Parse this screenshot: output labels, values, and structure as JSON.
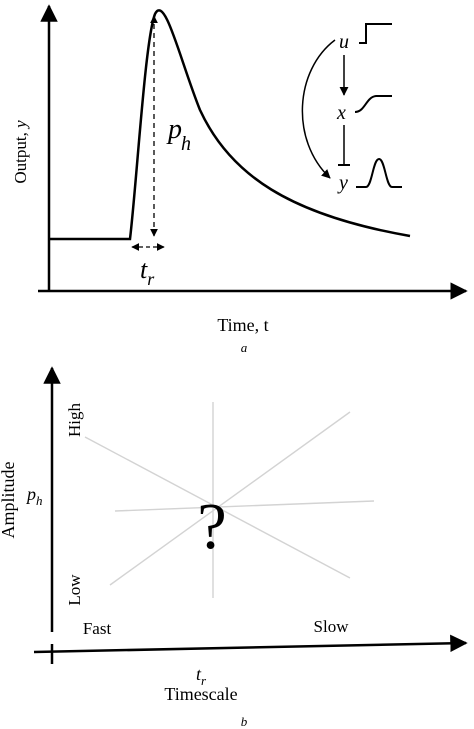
{
  "panel_a": {
    "ylabel": "Output, ",
    "ylabel_var": "y",
    "xlabel": "Time, t",
    "caption": "a",
    "peak_label": "p",
    "peak_sub": "h",
    "rise_label": "t",
    "rise_sub": "r",
    "inset": {
      "input": "u",
      "state": "x",
      "output": "y"
    }
  },
  "panel_b": {
    "ylabel": "Amplitude",
    "ylabel_var": "p",
    "ylabel_sub": "h",
    "high": "High",
    "low": "Low",
    "fast": "Fast",
    "slow": "Slow",
    "question": "?",
    "xlabel_var": "t",
    "xlabel_sub": "r",
    "xlabel": "Timescale",
    "caption": "b"
  }
}
